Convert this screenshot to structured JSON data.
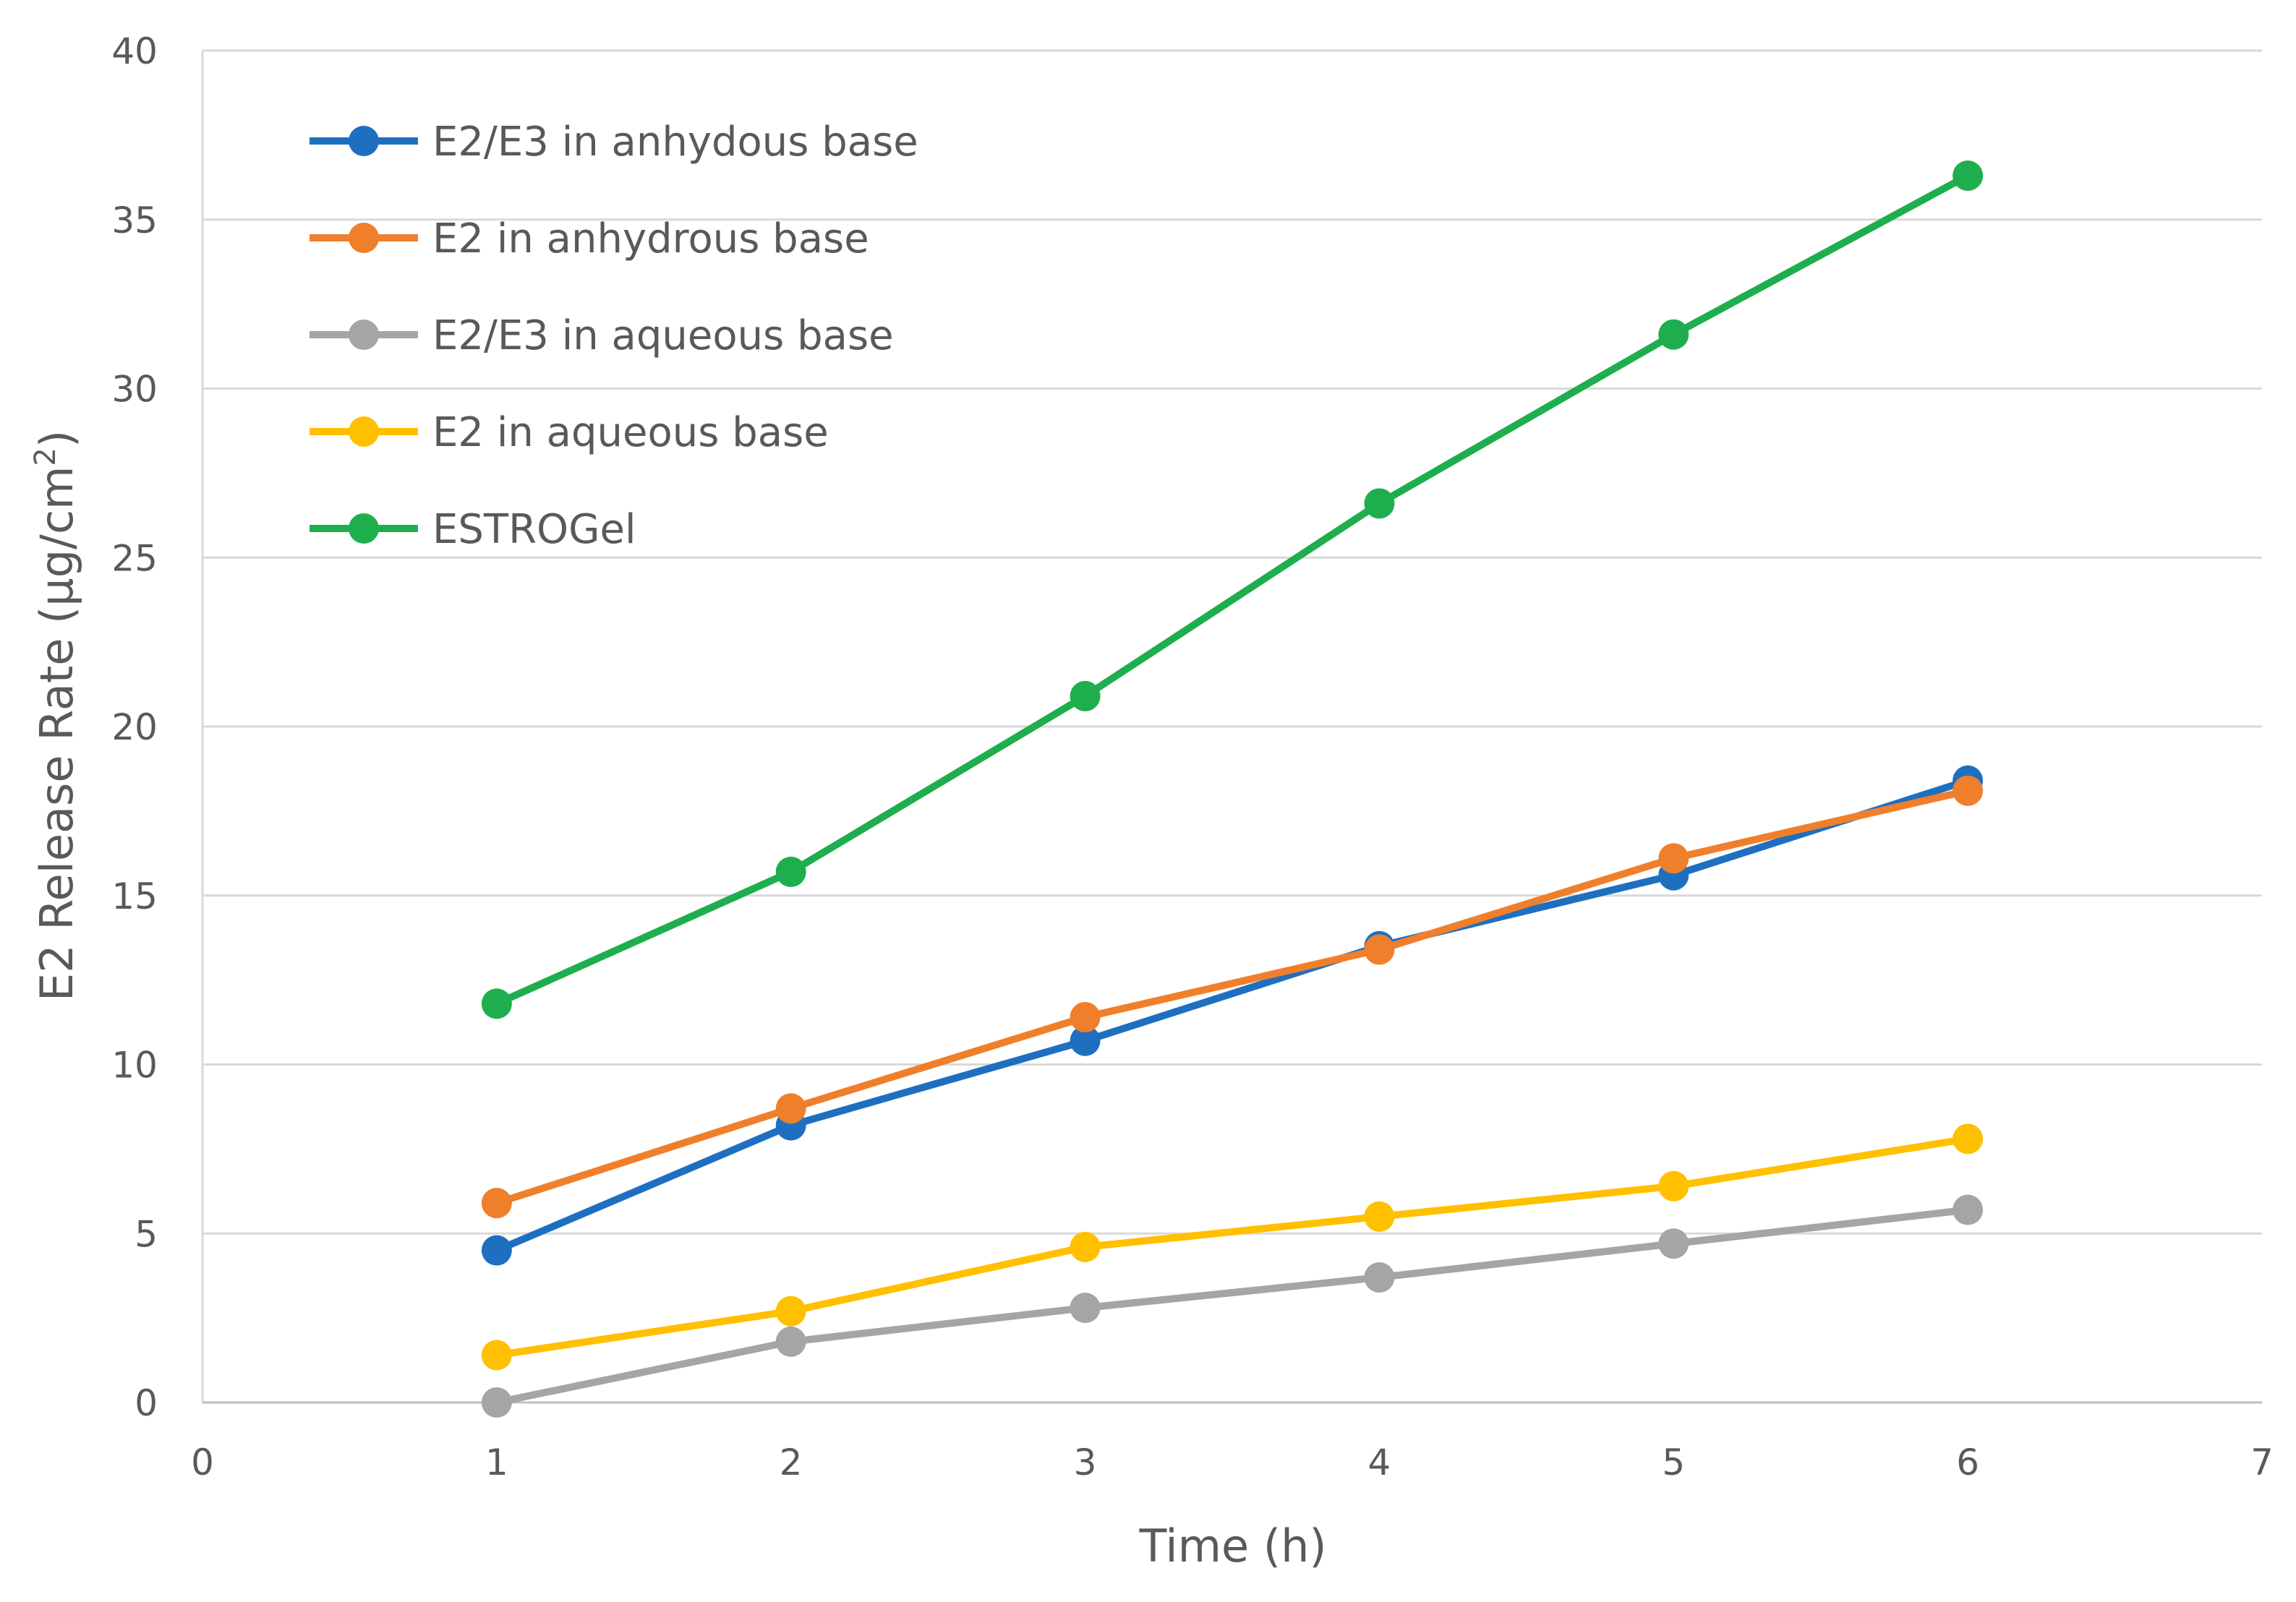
{
  "chart_data": {
    "type": "line",
    "title": "",
    "xlabel": "Time (h)",
    "ylabel": {
      "main": "E2 Release Rate (μg/cm",
      "superscript": "2",
      "close": ")"
    },
    "xlim": [
      0,
      7
    ],
    "ylim": [
      0,
      40
    ],
    "x_ticks": [
      "0",
      "1",
      "2",
      "3",
      "4",
      "5",
      "6",
      "7"
    ],
    "y_ticks": [
      "0",
      "5",
      "10",
      "15",
      "20",
      "25",
      "30",
      "35",
      "40"
    ],
    "grid": "horizontal",
    "legend_position": "top-left",
    "x": [
      1,
      2,
      3,
      4,
      5,
      6
    ],
    "series": [
      {
        "name": "E2/E3 in anhydous base",
        "color": "#1f6fc0",
        "values": [
          4.5,
          8.2,
          10.7,
          13.5,
          15.6,
          18.4
        ]
      },
      {
        "name": "E2 in anhydrous base",
        "color": "#f07f2b",
        "values": [
          5.9,
          8.7,
          11.4,
          13.4,
          16.1,
          18.1
        ]
      },
      {
        "name": "E2/E3 in aqueous base",
        "color": "#a5a5a5",
        "values": [
          0.0,
          1.8,
          2.8,
          3.7,
          4.7,
          5.7
        ]
      },
      {
        "name": "E2 in aqueous base",
        "color": "#ffc000",
        "values": [
          1.4,
          2.7,
          4.6,
          5.5,
          6.4,
          7.8
        ]
      },
      {
        "name": "ESTROGel",
        "color": "#1eae4e",
        "values": [
          11.8,
          15.7,
          20.9,
          26.6,
          31.6,
          36.3
        ]
      }
    ]
  }
}
